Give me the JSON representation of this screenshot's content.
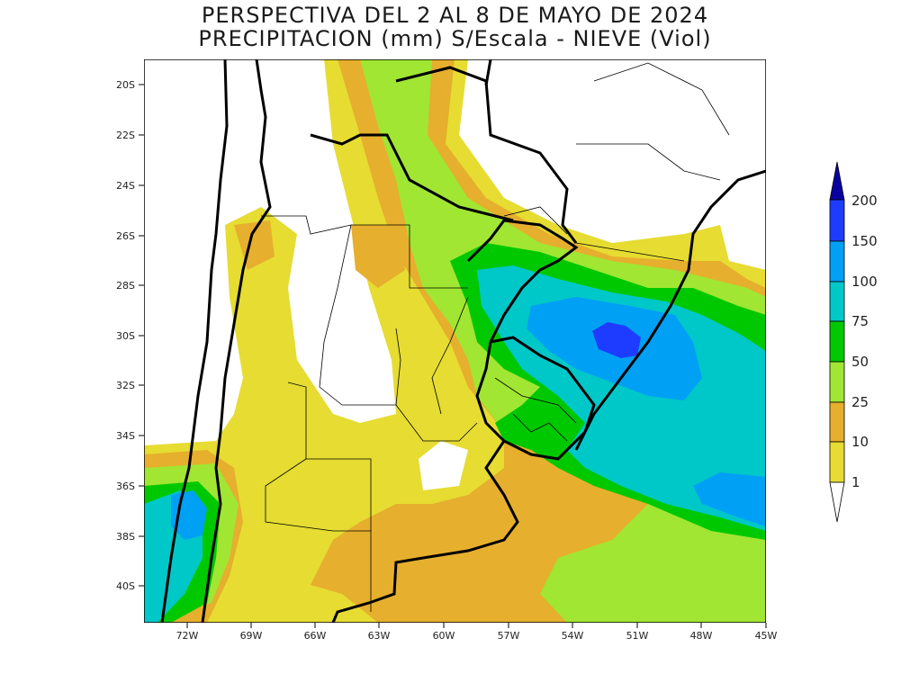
{
  "title_line1": "PERSPECTIVA DEL 2 AL 8 DE MAYO DE 2024",
  "title_line2": "PRECIPITACION (mm) S/Escala - NIEVE (Viol)",
  "lat_labels": [
    "20S",
    "22S",
    "24S",
    "26S",
    "28S",
    "30S",
    "32S",
    "34S",
    "36S",
    "38S",
    "40S"
  ],
  "lon_labels": [
    "72W",
    "69W",
    "66W",
    "63W",
    "60W",
    "57W",
    "54W",
    "51W",
    "48W",
    "45W"
  ],
  "colorbar": {
    "levels": [
      "200",
      "150",
      "100",
      "75",
      "50",
      "25",
      "10",
      "1"
    ],
    "colors": {
      "c1": "#e6dc32",
      "c10": "#e6af2d",
      "c25": "#a0e632",
      "c50": "#00c800",
      "c75": "#00c8c8",
      "c100": "#00a0f5",
      "c150": "#1e3cff",
      "c200": "#0a00a0"
    }
  }
}
